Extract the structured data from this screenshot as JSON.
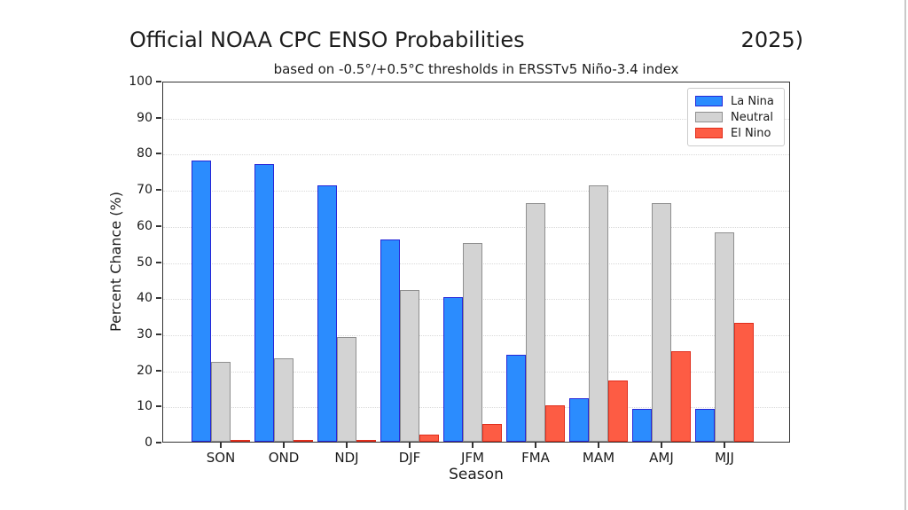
{
  "chart_data": {
    "type": "bar",
    "title": "Official NOAA CPC ENSO Probabilities",
    "title_right": "2025)",
    "subtitle": "based on -0.5°/+0.5°C thresholds in ERSSTv5 Niño-3.4 index",
    "xlabel": "Season",
    "ylabel": "Percent Chance (%)",
    "categories": [
      "SON",
      "OND",
      "NDJ",
      "DJF",
      "JFM",
      "FMA",
      "MAM",
      "AMJ",
      "MJJ"
    ],
    "series": [
      {
        "name": "La Nina",
        "fill": "#2b8cfe",
        "edge": "#2727d8",
        "values": [
          78,
          77,
          71,
          56,
          40,
          24,
          12,
          9,
          9
        ]
      },
      {
        "name": "Neutral",
        "fill": "#d3d3d3",
        "edge": "#8f8f8f",
        "values": [
          22,
          23,
          29,
          42,
          55,
          66,
          71,
          66,
          58
        ]
      },
      {
        "name": "El Nino",
        "fill": "#fd5c44",
        "edge": "#e02d1c",
        "values": [
          0,
          0,
          0,
          2,
          5,
          10,
          17,
          25,
          33
        ]
      }
    ],
    "ylim": [
      0,
      100
    ],
    "yticks": [
      0,
      10,
      20,
      30,
      40,
      50,
      60,
      70,
      80,
      90,
      100
    ],
    "grid": true,
    "legend_position": "upper right"
  },
  "colors": {
    "spine": "#333333",
    "gridline": "#d9d9d9",
    "text": "#1a1a1a",
    "window_edge": "#c9c9c9"
  }
}
